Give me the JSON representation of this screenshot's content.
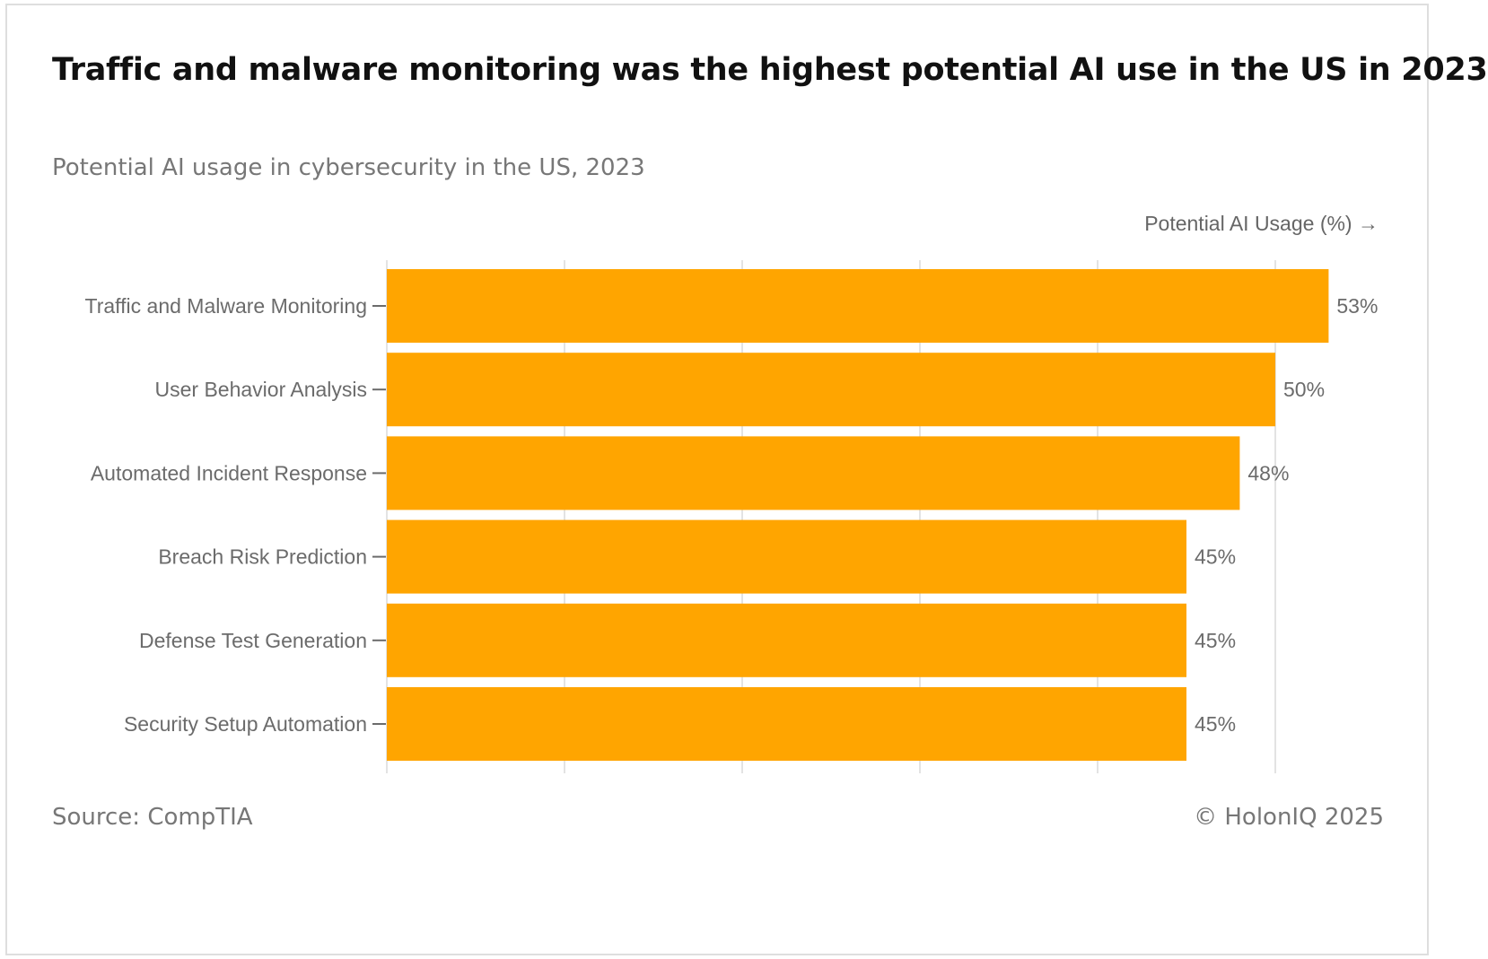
{
  "header": {
    "title": "Traffic and malware monitoring was the highest potential AI use in the US in 2023",
    "subtitle": "Potential AI usage in cybersecurity in the US, 2023"
  },
  "footer": {
    "source": "Source: CompTIA",
    "copyright": "© HolonIQ 2025"
  },
  "colors": {
    "bar": "#FFA500",
    "grid": "#e3e3e3",
    "axis_text": "#666666",
    "label_text": "#6b6b6b"
  },
  "chart_data": {
    "type": "bar",
    "orientation": "horizontal",
    "title": "Traffic and malware monitoring was the highest potential AI use in the US in 2023",
    "subtitle": "Potential AI usage in cybersecurity in the US, 2023",
    "xlabel": "Potential AI Usage (%) →",
    "ylabel": "",
    "categories": [
      "Traffic and Malware Monitoring",
      "User Behavior Analysis",
      "Automated Incident Response",
      "Breach Risk Prediction",
      "Defense Test Generation",
      "Security Setup Automation"
    ],
    "values": [
      53,
      50,
      48,
      45,
      45,
      45
    ],
    "data_labels": [
      "53%",
      "50%",
      "48%",
      "45%",
      "45%",
      "45%"
    ],
    "xlim": [
      0,
      50
    ],
    "grid_values": [
      0,
      10,
      20,
      30,
      40,
      50
    ],
    "grid": true,
    "legend": "none"
  }
}
